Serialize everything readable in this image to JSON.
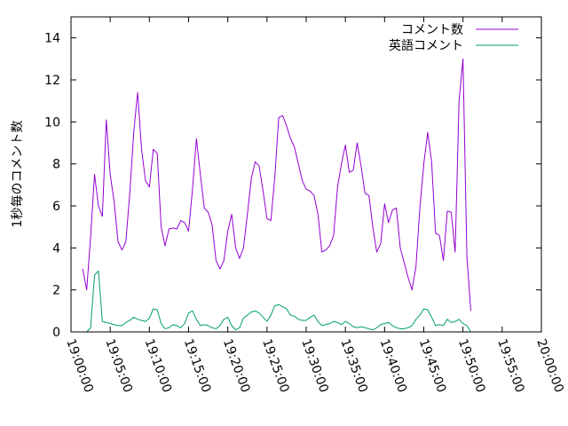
{
  "chart_data": {
    "type": "line",
    "ylabel": "1秒毎のコメント数",
    "xlabel": "",
    "ylim": [
      0,
      15
    ],
    "y_ticks": [
      0,
      2,
      4,
      6,
      8,
      10,
      12,
      14
    ],
    "x_range": [
      "19:00:00",
      "20:00:00"
    ],
    "x_ticks": [
      "19:00:00",
      "19:05:00",
      "19:10:00",
      "19:15:00",
      "19:20:00",
      "19:25:00",
      "19:30:00",
      "19:35:00",
      "19:40:00",
      "19:45:00",
      "19:50:00",
      "19:55:00",
      "20:00:00"
    ],
    "grid": false,
    "legend_position": "top-right",
    "series": [
      {
        "name": "コメント数",
        "color": "#9400d3",
        "points": [
          [
            "19:01:30",
            3.0
          ],
          [
            "19:02:00",
            2.0
          ],
          [
            "19:02:30",
            4.5
          ],
          [
            "19:03:00",
            7.5
          ],
          [
            "19:03:30",
            6.0
          ],
          [
            "19:04:00",
            5.5
          ],
          [
            "19:04:30",
            10.1
          ],
          [
            "19:05:00",
            7.5
          ],
          [
            "19:05:30",
            6.2
          ],
          [
            "19:06:00",
            4.3
          ],
          [
            "19:06:30",
            3.9
          ],
          [
            "19:07:00",
            4.3
          ],
          [
            "19:07:30",
            6.6
          ],
          [
            "19:08:00",
            9.5
          ],
          [
            "19:08:30",
            11.4
          ],
          [
            "19:09:00",
            8.7
          ],
          [
            "19:09:30",
            7.2
          ],
          [
            "19:10:00",
            6.9
          ],
          [
            "19:10:30",
            8.7
          ],
          [
            "19:11:00",
            8.5
          ],
          [
            "19:11:30",
            5.0
          ],
          [
            "19:12:00",
            4.1
          ],
          [
            "19:12:30",
            4.9
          ],
          [
            "19:13:00",
            4.95
          ],
          [
            "19:13:30",
            4.9
          ],
          [
            "19:14:00",
            5.3
          ],
          [
            "19:14:30",
            5.2
          ],
          [
            "19:15:00",
            4.8
          ],
          [
            "19:15:30",
            6.8
          ],
          [
            "19:16:00",
            9.2
          ],
          [
            "19:16:30",
            7.5
          ],
          [
            "19:17:00",
            5.9
          ],
          [
            "19:17:30",
            5.7
          ],
          [
            "19:18:00",
            5.1
          ],
          [
            "19:18:30",
            3.4
          ],
          [
            "19:19:00",
            3.0
          ],
          [
            "19:19:30",
            3.4
          ],
          [
            "19:20:00",
            4.8
          ],
          [
            "19:20:30",
            5.6
          ],
          [
            "19:21:00",
            4.0
          ],
          [
            "19:21:30",
            3.5
          ],
          [
            "19:22:00",
            4.0
          ],
          [
            "19:22:30",
            5.6
          ],
          [
            "19:23:00",
            7.3
          ],
          [
            "19:23:30",
            8.1
          ],
          [
            "19:24:00",
            7.9
          ],
          [
            "19:24:30",
            6.7
          ],
          [
            "19:25:00",
            5.4
          ],
          [
            "19:25:30",
            5.3
          ],
          [
            "19:26:00",
            7.4
          ],
          [
            "19:26:30",
            10.2
          ],
          [
            "19:27:00",
            10.3
          ],
          [
            "19:27:30",
            9.8
          ],
          [
            "19:28:00",
            9.2
          ],
          [
            "19:28:30",
            8.8
          ],
          [
            "19:29:00",
            8.0
          ],
          [
            "19:29:30",
            7.2
          ],
          [
            "19:30:00",
            6.8
          ],
          [
            "19:30:30",
            6.7
          ],
          [
            "19:31:00",
            6.5
          ],
          [
            "19:31:30",
            5.6
          ],
          [
            "19:32:00",
            3.8
          ],
          [
            "19:32:30",
            3.9
          ],
          [
            "19:33:00",
            4.1
          ],
          [
            "19:33:30",
            4.6
          ],
          [
            "19:34:00",
            6.9
          ],
          [
            "19:34:30",
            8.0
          ],
          [
            "19:35:00",
            8.9
          ],
          [
            "19:35:30",
            7.6
          ],
          [
            "19:36:00",
            7.7
          ],
          [
            "19:36:30",
            9.0
          ],
          [
            "19:37:00",
            7.9
          ],
          [
            "19:37:30",
            6.6
          ],
          [
            "19:38:00",
            6.5
          ],
          [
            "19:38:30",
            5.0
          ],
          [
            "19:39:00",
            3.8
          ],
          [
            "19:39:30",
            4.2
          ],
          [
            "19:40:00",
            6.1
          ],
          [
            "19:40:30",
            5.2
          ],
          [
            "19:41:00",
            5.8
          ],
          [
            "19:41:30",
            5.9
          ],
          [
            "19:42:00",
            4.0
          ],
          [
            "19:42:30",
            3.3
          ],
          [
            "19:43:00",
            2.6
          ],
          [
            "19:43:30",
            2.0
          ],
          [
            "19:44:00",
            3.1
          ],
          [
            "19:44:30",
            5.9
          ],
          [
            "19:45:00",
            8.0
          ],
          [
            "19:45:30",
            9.5
          ],
          [
            "19:46:00",
            8.1
          ],
          [
            "19:46:30",
            4.7
          ],
          [
            "19:47:00",
            4.6
          ],
          [
            "19:47:30",
            3.4
          ],
          [
            "19:48:00",
            5.75
          ],
          [
            "19:48:30",
            5.7
          ],
          [
            "19:49:00",
            3.8
          ],
          [
            "19:49:30",
            11.0
          ],
          [
            "19:50:00",
            13.0
          ],
          [
            "19:50:30",
            3.6
          ],
          [
            "19:51:00",
            1.0
          ]
        ]
      },
      {
        "name": "英語コメント",
        "color": "#009e73",
        "points": [
          [
            "19:02:00",
            0.0
          ],
          [
            "19:02:30",
            0.2
          ],
          [
            "19:03:00",
            2.7
          ],
          [
            "19:03:30",
            2.9
          ],
          [
            "19:04:00",
            0.5
          ],
          [
            "19:04:30",
            0.45
          ],
          [
            "19:05:00",
            0.4
          ],
          [
            "19:05:30",
            0.35
          ],
          [
            "19:06:00",
            0.3
          ],
          [
            "19:06:30",
            0.3
          ],
          [
            "19:07:00",
            0.45
          ],
          [
            "19:07:30",
            0.55
          ],
          [
            "19:08:00",
            0.7
          ],
          [
            "19:08:30",
            0.6
          ],
          [
            "19:09:00",
            0.55
          ],
          [
            "19:09:30",
            0.5
          ],
          [
            "19:10:00",
            0.65
          ],
          [
            "19:10:30",
            1.1
          ],
          [
            "19:11:00",
            1.05
          ],
          [
            "19:11:30",
            0.4
          ],
          [
            "19:12:00",
            0.15
          ],
          [
            "19:12:30",
            0.2
          ],
          [
            "19:13:00",
            0.35
          ],
          [
            "19:13:30",
            0.3
          ],
          [
            "19:14:00",
            0.2
          ],
          [
            "19:14:30",
            0.4
          ],
          [
            "19:15:00",
            0.9
          ],
          [
            "19:15:30",
            1.0
          ],
          [
            "19:16:00",
            0.6
          ],
          [
            "19:16:30",
            0.3
          ],
          [
            "19:17:00",
            0.35
          ],
          [
            "19:17:30",
            0.3
          ],
          [
            "19:18:00",
            0.2
          ],
          [
            "19:18:30",
            0.15
          ],
          [
            "19:19:00",
            0.3
          ],
          [
            "19:19:30",
            0.6
          ],
          [
            "19:20:00",
            0.7
          ],
          [
            "19:20:30",
            0.3
          ],
          [
            "19:21:00",
            0.1
          ],
          [
            "19:21:30",
            0.2
          ],
          [
            "19:22:00",
            0.65
          ],
          [
            "19:22:30",
            0.8
          ],
          [
            "19:23:00",
            0.95
          ],
          [
            "19:23:30",
            1.0
          ],
          [
            "19:24:00",
            0.9
          ],
          [
            "19:24:30",
            0.7
          ],
          [
            "19:25:00",
            0.5
          ],
          [
            "19:25:30",
            0.8
          ],
          [
            "19:26:00",
            1.25
          ],
          [
            "19:26:30",
            1.3
          ],
          [
            "19:27:00",
            1.2
          ],
          [
            "19:27:30",
            1.1
          ],
          [
            "19:28:00",
            0.8
          ],
          [
            "19:28:30",
            0.75
          ],
          [
            "19:29:00",
            0.6
          ],
          [
            "19:29:30",
            0.55
          ],
          [
            "19:30:00",
            0.55
          ],
          [
            "19:30:30",
            0.7
          ],
          [
            "19:31:00",
            0.8
          ],
          [
            "19:31:30",
            0.5
          ],
          [
            "19:32:00",
            0.3
          ],
          [
            "19:32:30",
            0.35
          ],
          [
            "19:33:00",
            0.4
          ],
          [
            "19:33:30",
            0.5
          ],
          [
            "19:34:00",
            0.45
          ],
          [
            "19:34:30",
            0.35
          ],
          [
            "19:35:00",
            0.5
          ],
          [
            "19:35:30",
            0.4
          ],
          [
            "19:36:00",
            0.25
          ],
          [
            "19:36:30",
            0.2
          ],
          [
            "19:37:00",
            0.25
          ],
          [
            "19:37:30",
            0.2
          ],
          [
            "19:38:00",
            0.15
          ],
          [
            "19:38:30",
            0.1
          ],
          [
            "19:39:00",
            0.2
          ],
          [
            "19:39:30",
            0.35
          ],
          [
            "19:40:00",
            0.4
          ],
          [
            "19:40:30",
            0.45
          ],
          [
            "19:41:00",
            0.3
          ],
          [
            "19:41:30",
            0.2
          ],
          [
            "19:42:00",
            0.15
          ],
          [
            "19:42:30",
            0.15
          ],
          [
            "19:43:00",
            0.2
          ],
          [
            "19:43:30",
            0.3
          ],
          [
            "19:44:00",
            0.6
          ],
          [
            "19:44:30",
            0.8
          ],
          [
            "19:45:00",
            1.1
          ],
          [
            "19:45:30",
            1.05
          ],
          [
            "19:46:00",
            0.7
          ],
          [
            "19:46:30",
            0.3
          ],
          [
            "19:47:00",
            0.35
          ],
          [
            "19:47:30",
            0.3
          ],
          [
            "19:48:00",
            0.6
          ],
          [
            "19:48:30",
            0.45
          ],
          [
            "19:49:00",
            0.5
          ],
          [
            "19:49:30",
            0.6
          ],
          [
            "19:50:00",
            0.4
          ],
          [
            "19:50:30",
            0.3
          ],
          [
            "19:51:00",
            0.0
          ]
        ]
      }
    ]
  }
}
